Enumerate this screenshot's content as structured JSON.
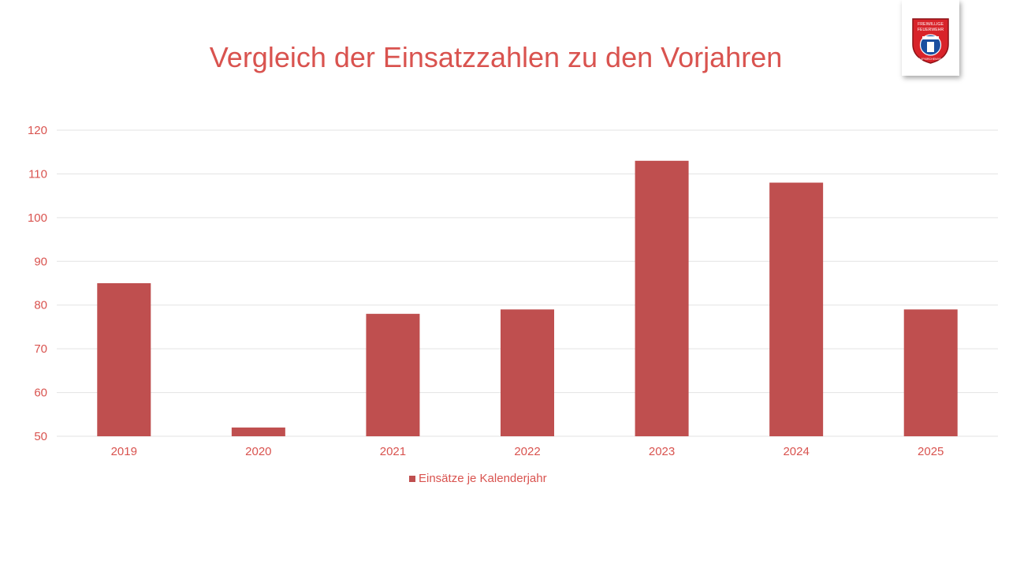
{
  "title": "Vergleich der Einsatzzahlen zu den Vorjahren",
  "logo": {
    "text_top": "FREIWILLIGE",
    "text_mid": "FEUERWEHR",
    "text_bottom": "TAUFKIRCHEN/VILS"
  },
  "colors": {
    "bar": "#bf4f4f",
    "text": "#d9534f",
    "grid": "#e3e3e3"
  },
  "legend": {
    "label": "Einsätze je Kalenderjahr"
  },
  "chart_data": {
    "type": "bar",
    "title": "Vergleich der Einsatzzahlen zu den Vorjahren",
    "categories": [
      "2019",
      "2020",
      "2021",
      "2022",
      "2023",
      "2024",
      "2025"
    ],
    "series": [
      {
        "name": "Einsätze je Kalenderjahr",
        "values": [
          85,
          52,
          78,
          79,
          113,
          108,
          79
        ]
      }
    ],
    "yticks": [
      50,
      60,
      70,
      80,
      90,
      100,
      110,
      120
    ],
    "ylim": [
      50,
      120
    ],
    "xlabel": "",
    "ylabel": "",
    "grid": true,
    "legend_position": "bottom"
  }
}
